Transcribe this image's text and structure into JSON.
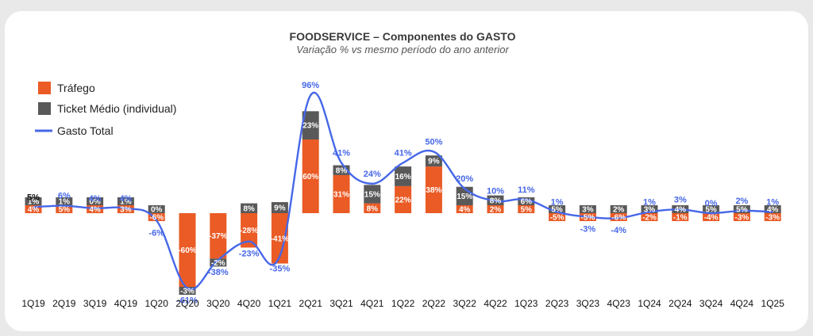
{
  "chart_data": {
    "type": "bar",
    "title": "FOODSERVICE – Componentes do GASTO",
    "subtitle": "Variação % vs mesmo período do ano anterior",
    "categories": [
      "1Q19",
      "2Q19",
      "3Q19",
      "4Q19",
      "1Q20",
      "2Q20",
      "3Q20",
      "4Q20",
      "1Q21",
      "2Q21",
      "3Q21",
      "4Q21",
      "1Q22",
      "2Q22",
      "3Q22",
      "4Q22",
      "1Q23",
      "2Q23",
      "3Q23",
      "4Q23",
      "1Q24",
      "2Q24",
      "3Q24",
      "4Q24",
      "1Q25"
    ],
    "series": [
      {
        "name": "Tráfego",
        "kind": "bar",
        "color": "#ea5b25",
        "values": [
          4,
          5,
          4,
          3,
          -6,
          -60,
          -37,
          -28,
          -41,
          60,
          31,
          8,
          22,
          38,
          4,
          2,
          5,
          -5,
          -5,
          -6,
          -2,
          -1,
          -4,
          -3,
          -3
        ]
      },
      {
        "name": "Ticket Médio (individual)",
        "kind": "bar",
        "color": "#595959",
        "values": [
          1,
          1,
          0,
          1,
          0,
          -3,
          -2,
          8,
          9,
          23,
          8,
          15,
          16,
          9,
          15,
          8,
          6,
          5,
          3,
          2,
          3,
          4,
          5,
          5,
          4
        ]
      },
      {
        "name": "Gasto Total",
        "kind": "line",
        "color": "#4667e8",
        "values": [
          5,
          6,
          4,
          4,
          -6,
          -61,
          -38,
          -23,
          -35,
          96,
          41,
          24,
          41,
          50,
          20,
          10,
          11,
          1,
          -3,
          -4,
          1,
          3,
          0,
          2,
          1
        ]
      }
    ],
    "labels": {
      "trafego": [
        "4%",
        "5%",
        "4%",
        "3%",
        "-6%",
        "-60%",
        "-37%",
        "-28%",
        "-41%",
        "60%",
        "31%",
        "8%",
        "22%",
        "38%",
        "4%",
        "2%",
        "5%",
        "-5%",
        "-5%",
        "-6%",
        "-2%",
        "-1%",
        "-4%",
        "-3%",
        "-3%"
      ],
      "ticket": [
        "1%",
        "1%",
        "0%",
        "1%",
        "0%",
        "-3%",
        "-2%",
        "8%",
        "9%",
        "23%",
        "8%",
        "15%",
        "16%",
        "9%",
        "15%",
        "8%",
        "6%",
        "5%",
        "3%",
        "2%",
        "3%",
        "4%",
        "5%",
        "5%",
        "4%"
      ],
      "gasto": [
        "5%",
        "6%",
        "4%",
        "4%",
        "-6%",
        "-61%",
        "-38%",
        "-23%",
        "-35%",
        "96%",
        "41%",
        "24%",
        "41%",
        "50%",
        "20%",
        "10%",
        "11%",
        "1%",
        "-3%",
        "-4%",
        "1%",
        "3%",
        "0%",
        "2%",
        "1%"
      ]
    },
    "legend": [
      "Tráfego",
      "Ticket Médio (individual)",
      "Gasto Total"
    ],
    "legend_position": "top-left",
    "ylim": [
      -70,
      105
    ],
    "grid": false
  }
}
